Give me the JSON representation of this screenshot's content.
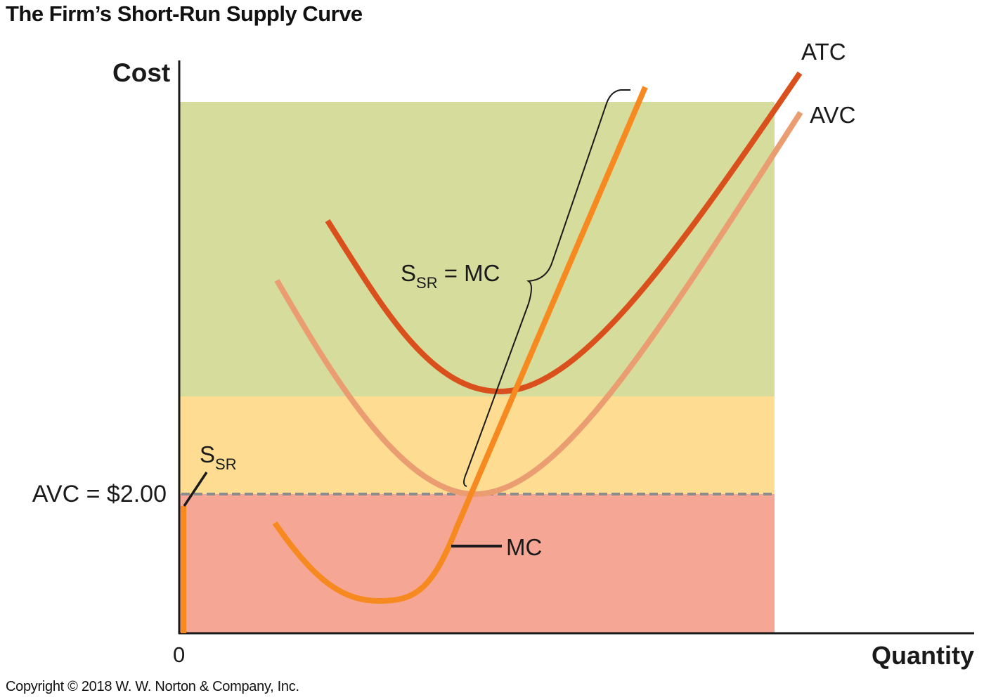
{
  "title": "The Firm’s Short-Run Supply Curve",
  "copyright": "Copyright © 2018 W. W. Norton & Company, Inc.",
  "colors": {
    "band_top": "#d5dc9c",
    "band_middle": "#fedd92",
    "band_bottom": "#f6a695",
    "atc": "#d9501c",
    "avc": "#eb9d72",
    "mc": "#f6891f",
    "dashed": "#8c8c8c"
  },
  "chart_data": {
    "type": "line",
    "xlabel": "Quantity",
    "ylabel": "Cost",
    "origin_label": "0",
    "grid": false,
    "legend": "none",
    "shutdown_price_label": "AVC = $2.00",
    "shutdown_price": 2.0,
    "series": [
      {
        "name": "ATC",
        "label": "ATC"
      },
      {
        "name": "AVC",
        "label": "AVC"
      },
      {
        "name": "MC",
        "label": "MC"
      }
    ],
    "annotations": {
      "supply_above": {
        "main": "S",
        "sub": "SR",
        "rest": " = MC"
      },
      "supply_below": {
        "main": "S",
        "sub": "SR"
      }
    }
  }
}
